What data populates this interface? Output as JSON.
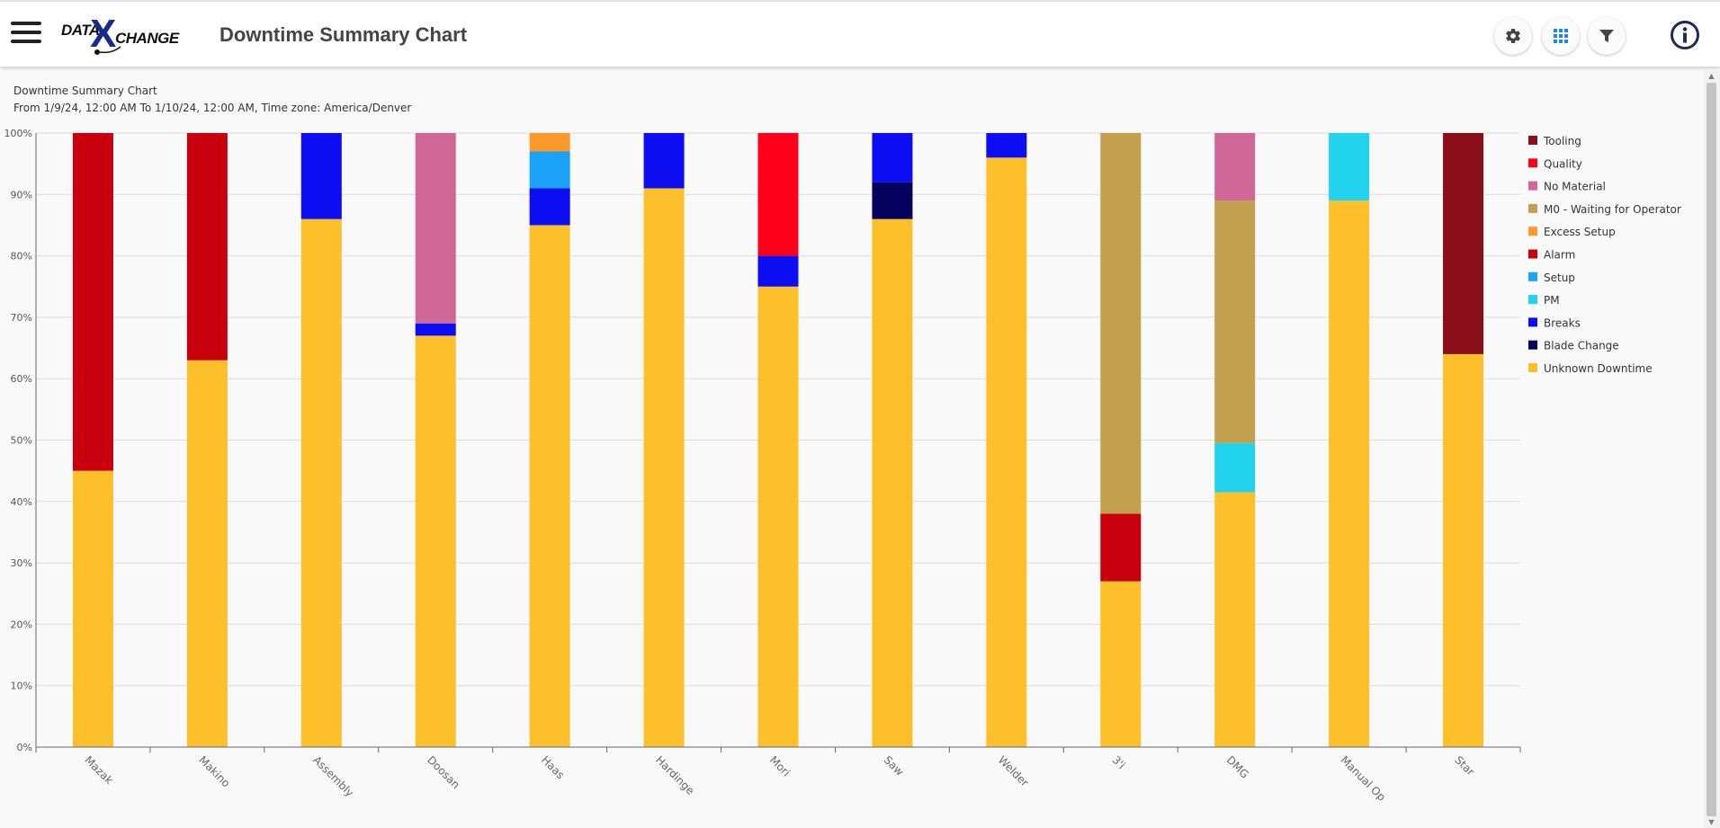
{
  "header": {
    "title": "Downtime Summary Chart",
    "logo_left": "DATA",
    "logo_mid": "X",
    "logo_right": "CHANGE"
  },
  "chart_header": {
    "title": "Downtime Summary Chart",
    "subtitle": "From 1/9/24, 12:00 AM To 1/10/24, 12:00 AM, Time zone: America/Denver"
  },
  "colors": {
    "Unknown Downtime": "#fec02a",
    "Blade Change": "#04005c",
    "Breaks": "#0d0df4",
    "PM": "#22d3ee",
    "Setup": "#1aa3f7",
    "Alarm": "#c8000e",
    "Excess Setup": "#fb9a2a",
    "M0 - Waiting for Operator": "#c2a04e",
    "No Material": "#d06897",
    "Quality": "#fe0019",
    "Tooling": "#8b0d1a"
  },
  "chart_data": {
    "type": "bar",
    "stacked": true,
    "title": "Downtime Summary Chart",
    "xlabel": "",
    "ylabel": "",
    "ylim": [
      0,
      100
    ],
    "yticks": [
      "0%",
      "10%",
      "20%",
      "30%",
      "40%",
      "50%",
      "60%",
      "70%",
      "80%",
      "90%",
      "100%"
    ],
    "grid": true,
    "legend_position": "right",
    "legend": [
      "Tooling",
      "Quality",
      "No Material",
      "M0 - Waiting for Operator",
      "Excess Setup",
      "Alarm",
      "Setup",
      "PM",
      "Breaks",
      "Blade Change",
      "Unknown Downtime"
    ],
    "stack_order": [
      "Unknown Downtime",
      "Blade Change",
      "Breaks",
      "PM",
      "Setup",
      "Alarm",
      "Excess Setup",
      "M0 - Waiting for Operator",
      "No Material",
      "Quality",
      "Tooling"
    ],
    "categories": [
      "Mazak",
      "Makino",
      "Assembly",
      "Doosan",
      "Haas",
      "Hardinge",
      "Mori",
      "Saw",
      "Welder",
      "3'i",
      "DMG",
      "Manual Op",
      "Star"
    ],
    "series": [
      {
        "name": "Unknown Downtime",
        "values": [
          45,
          63,
          86,
          67,
          85,
          91,
          75,
          86,
          96,
          27,
          41.5,
          89,
          64
        ]
      },
      {
        "name": "Blade Change",
        "values": [
          0,
          0,
          0,
          0,
          0,
          0,
          0,
          6,
          0,
          0,
          0,
          0,
          0
        ]
      },
      {
        "name": "Breaks",
        "values": [
          0,
          0,
          14,
          2,
          6,
          9,
          5,
          8,
          4,
          0,
          0,
          0,
          0
        ]
      },
      {
        "name": "PM",
        "values": [
          0,
          0,
          0,
          0,
          0,
          0,
          0,
          0,
          0,
          0,
          8,
          11,
          0
        ]
      },
      {
        "name": "Setup",
        "values": [
          0,
          0,
          0,
          0,
          6,
          0,
          0,
          0,
          0,
          0,
          0,
          0,
          0
        ]
      },
      {
        "name": "Alarm",
        "values": [
          55,
          37,
          0,
          0,
          0,
          0,
          0,
          0,
          0,
          11,
          0,
          0,
          0
        ]
      },
      {
        "name": "Excess Setup",
        "values": [
          0,
          0,
          0,
          0,
          3,
          0,
          0,
          0,
          0,
          0,
          0,
          0,
          0
        ]
      },
      {
        "name": "M0 - Waiting for Operator",
        "values": [
          0,
          0,
          0,
          0,
          0,
          0,
          0,
          0,
          0,
          62,
          39.5,
          0,
          0
        ]
      },
      {
        "name": "No Material",
        "values": [
          0,
          0,
          0,
          31,
          0,
          0,
          0,
          0,
          0,
          0,
          11,
          0,
          0
        ]
      },
      {
        "name": "Quality",
        "values": [
          0,
          0,
          0,
          0,
          0,
          0,
          20,
          0,
          0,
          0,
          0,
          0,
          0
        ]
      },
      {
        "name": "Tooling",
        "values": [
          0,
          0,
          0,
          0,
          0,
          0,
          0,
          0,
          0,
          0,
          0,
          0,
          36
        ]
      }
    ]
  }
}
